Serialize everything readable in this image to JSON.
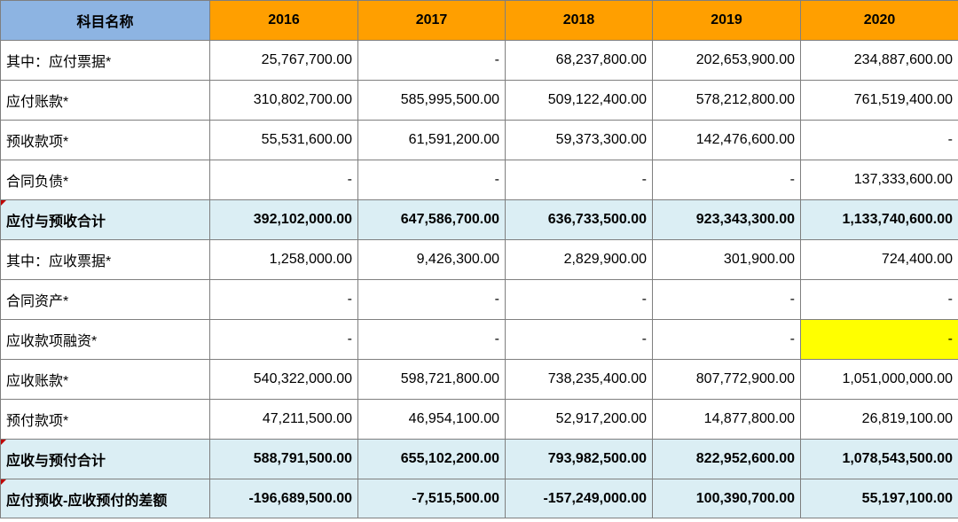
{
  "header": {
    "name_col": "科目名称",
    "years": [
      "2016",
      "2017",
      "2018",
      "2019",
      "2020"
    ]
  },
  "rows": [
    {
      "label": "其中：应付票据*",
      "values": [
        "25,767,700.00",
        "-",
        "68,237,800.00",
        "202,653,900.00",
        "234,887,600.00"
      ]
    },
    {
      "label": "应付账款*",
      "values": [
        "310,802,700.00",
        "585,995,500.00",
        "509,122,400.00",
        "578,212,800.00",
        "761,519,400.00"
      ]
    },
    {
      "label": "预收款项*",
      "values": [
        "55,531,600.00",
        "61,591,200.00",
        "59,373,300.00",
        "142,476,600.00",
        "-"
      ]
    },
    {
      "label": "合同负债*",
      "values": [
        "-",
        "-",
        "-",
        "-",
        "137,333,600.00"
      ]
    },
    {
      "label": "应付与预收合计",
      "values": [
        "392,102,000.00",
        "647,586,700.00",
        "636,733,500.00",
        "923,343,300.00",
        "1,133,740,600.00"
      ]
    },
    {
      "label": "其中：应收票据*",
      "values": [
        "1,258,000.00",
        "9,426,300.00",
        "2,829,900.00",
        "301,900.00",
        "724,400.00"
      ]
    },
    {
      "label": "合同资产*",
      "values": [
        "-",
        "-",
        "-",
        "-",
        "-"
      ]
    },
    {
      "label": "应收款项融资*",
      "values": [
        "-",
        "-",
        "-",
        "-",
        "-"
      ]
    },
    {
      "label": "应收账款*",
      "values": [
        "540,322,000.00",
        "598,721,800.00",
        "738,235,400.00",
        "807,772,900.00",
        "1,051,000,000.00"
      ]
    },
    {
      "label": "预付款项*",
      "values": [
        "47,211,500.00",
        "46,954,100.00",
        "52,917,200.00",
        "14,877,800.00",
        "26,819,100.00"
      ]
    },
    {
      "label": "应收与预付合计",
      "values": [
        "588,791,500.00",
        "655,102,200.00",
        "793,982,500.00",
        "822,952,600.00",
        "1,078,543,500.00"
      ]
    },
    {
      "label": "应付预收-应收预付的差额",
      "values": [
        "-196,689,500.00",
        "-7,515,500.00",
        "-157,249,000.00",
        "100,390,700.00",
        "55,197,100.00"
      ]
    }
  ],
  "colors": {
    "name_header_bg": "#8db4e2",
    "year_header_bg": "#ff9f00",
    "total_row_bg": "#dbeef4",
    "highlight_cell_bg": "#ffff00",
    "comment_marker": "#c00000"
  }
}
